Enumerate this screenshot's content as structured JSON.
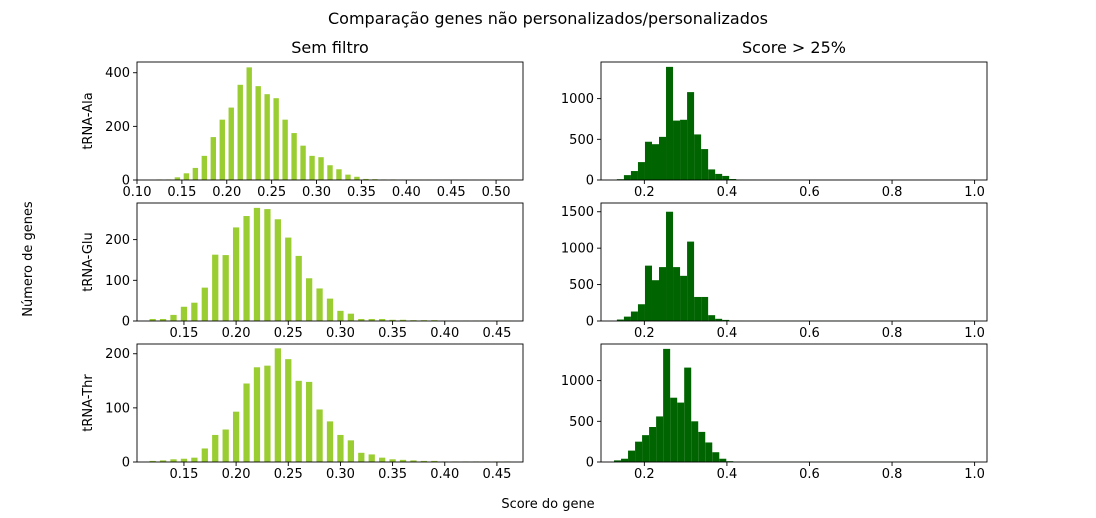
{
  "figure": {
    "title": "Comparação genes não personalizados/personalizados",
    "ylabel": "Número de genes",
    "xlabel": "Score do gene",
    "columns": [
      "Sem filtro",
      "Score > 25%"
    ],
    "rows": [
      "tRNA-Ala",
      "tRNA-Glu",
      "tRNA-Thr"
    ]
  },
  "colors": {
    "left": "#9acd32",
    "right": "#006400"
  },
  "chart_data": [
    {
      "type": "bar",
      "title": "Sem filtro",
      "ylabel": "tRNA-Ala",
      "bar_width": 0.006,
      "color": "#9acd32",
      "xlim": [
        0.1,
        0.53
      ],
      "ylim": [
        0,
        440
      ],
      "xticks": [
        0.1,
        0.15,
        0.2,
        0.25,
        0.3,
        0.35,
        0.4,
        0.45,
        0.5
      ],
      "xtick_labels": [
        "0.10",
        "0.15",
        "0.20",
        "0.25",
        "0.30",
        "0.35",
        "0.40",
        "0.45",
        "0.50"
      ],
      "yticks": [
        0,
        200,
        400
      ],
      "ytick_labels": [
        "0",
        "200",
        "400"
      ],
      "x": [
        0.125,
        0.135,
        0.145,
        0.155,
        0.165,
        0.175,
        0.185,
        0.195,
        0.205,
        0.215,
        0.225,
        0.235,
        0.245,
        0.255,
        0.265,
        0.275,
        0.285,
        0.295,
        0.305,
        0.315,
        0.325,
        0.335,
        0.345,
        0.355,
        0.365,
        0.375,
        0.385,
        0.395,
        0.405,
        0.415,
        0.425,
        0.435,
        0.445,
        0.455,
        0.465,
        0.475,
        0.485,
        0.495,
        0.505,
        0.515
      ],
      "values": [
        2,
        2,
        10,
        25,
        45,
        90,
        160,
        225,
        270,
        355,
        420,
        350,
        320,
        305,
        225,
        175,
        128,
        90,
        85,
        55,
        40,
        20,
        12,
        4,
        3,
        2,
        2,
        1,
        1,
        1,
        1,
        1,
        1,
        1,
        1,
        1,
        1,
        1,
        1,
        1
      ]
    },
    {
      "type": "histogram",
      "title": "Score > 25%",
      "color": "#006400",
      "xlim": [
        0.095,
        1.03
      ],
      "ylim": [
        0,
        1450
      ],
      "xticks": [
        0.2,
        0.4,
        0.6,
        0.8,
        1.0
      ],
      "xtick_labels": [
        "0.2",
        "0.4",
        "0.6",
        "0.8",
        "1.0"
      ],
      "yticks": [
        0,
        500,
        1000
      ],
      "ytick_labels": [
        "0",
        "500",
        "1000"
      ],
      "bin_width": 0.017,
      "x": [
        0.142,
        0.159,
        0.176,
        0.193,
        0.21,
        0.227,
        0.244,
        0.261,
        0.278,
        0.295,
        0.312,
        0.329,
        0.346,
        0.363,
        0.38,
        0.397,
        0.414,
        0.431,
        0.448,
        0.465,
        0.482,
        0.499,
        0.516,
        0.533,
        0.55,
        0.567,
        0.584,
        0.601,
        0.618,
        0.635,
        0.652,
        0.669,
        0.686,
        0.703,
        0.72,
        0.737,
        0.754,
        0.771,
        0.788,
        0.805,
        0.822,
        0.839,
        0.856,
        0.873,
        0.89,
        0.907,
        0.924,
        0.941,
        0.958,
        0.975,
        0.992
      ],
      "values": [
        10,
        60,
        110,
        220,
        470,
        440,
        530,
        1390,
        730,
        740,
        1080,
        560,
        380,
        130,
        75,
        50,
        12,
        3,
        2,
        2,
        2,
        2,
        2,
        2,
        2,
        2,
        2,
        2,
        2,
        2,
        2,
        2,
        2,
        2,
        2,
        2,
        2,
        2,
        2,
        2,
        2,
        2,
        2,
        2,
        2,
        2,
        2,
        2,
        2,
        2,
        2
      ]
    },
    {
      "type": "bar",
      "ylabel": "tRNA-Glu",
      "bar_width": 0.006,
      "color": "#9acd32",
      "xlim": [
        0.105,
        0.475
      ],
      "ylim": [
        0,
        290
      ],
      "xticks": [
        0.15,
        0.2,
        0.25,
        0.3,
        0.35,
        0.4,
        0.45
      ],
      "xtick_labels": [
        "0.15",
        "0.20",
        "0.25",
        "0.30",
        "0.35",
        "0.40",
        "0.45"
      ],
      "yticks": [
        0,
        100,
        200
      ],
      "ytick_labels": [
        "0",
        "100",
        "200"
      ],
      "x": [
        0.12,
        0.13,
        0.14,
        0.15,
        0.16,
        0.17,
        0.18,
        0.19,
        0.2,
        0.21,
        0.22,
        0.23,
        0.24,
        0.25,
        0.26,
        0.27,
        0.28,
        0.29,
        0.3,
        0.31,
        0.32,
        0.33,
        0.34,
        0.35,
        0.36,
        0.37,
        0.38,
        0.39,
        0.4,
        0.41,
        0.42,
        0.43,
        0.44,
        0.45,
        0.46
      ],
      "values": [
        5,
        5,
        15,
        35,
        45,
        82,
        163,
        162,
        230,
        258,
        278,
        275,
        250,
        205,
        160,
        105,
        80,
        55,
        25,
        18,
        5,
        5,
        5,
        3,
        3,
        2,
        2,
        2,
        1,
        1,
        1,
        1,
        1,
        1,
        1
      ]
    },
    {
      "type": "histogram",
      "color": "#006400",
      "xlim": [
        0.095,
        1.03
      ],
      "ylim": [
        0,
        1620
      ],
      "xticks": [
        0.2,
        0.4,
        0.6,
        0.8,
        1.0
      ],
      "xtick_labels": [
        "0.2",
        "0.4",
        "0.6",
        "0.8",
        "1.0"
      ],
      "yticks": [
        0,
        500,
        1000,
        1500
      ],
      "ytick_labels": [
        "0",
        "500",
        "1000",
        "1500"
      ],
      "bin_width": 0.017,
      "x": [
        0.142,
        0.159,
        0.176,
        0.193,
        0.21,
        0.227,
        0.244,
        0.261,
        0.278,
        0.295,
        0.312,
        0.329,
        0.346,
        0.363,
        0.38,
        0.397,
        0.414,
        0.431,
        0.448,
        0.465,
        0.482,
        0.499,
        0.516,
        0.533,
        0.55,
        0.567,
        0.584,
        0.601,
        0.618,
        0.635,
        0.652,
        0.669,
        0.686,
        0.703,
        0.72,
        0.737,
        0.754,
        0.771,
        0.788,
        0.805,
        0.822,
        0.839,
        0.856,
        0.873,
        0.89,
        0.907,
        0.924,
        0.941,
        0.958,
        0.975,
        0.992
      ],
      "values": [
        20,
        60,
        130,
        230,
        760,
        560,
        740,
        1500,
        740,
        620,
        1090,
        330,
        330,
        80,
        30,
        15,
        5,
        3,
        2,
        2,
        2,
        2,
        2,
        2,
        2,
        2,
        2,
        2,
        2,
        2,
        2,
        2,
        2,
        2,
        2,
        2,
        2,
        2,
        2,
        2,
        2,
        2,
        2,
        2,
        2,
        2,
        2,
        2,
        2,
        2,
        2
      ]
    },
    {
      "type": "bar",
      "ylabel": "tRNA-Thr",
      "bar_width": 0.006,
      "color": "#9acd32",
      "xlim": [
        0.105,
        0.475
      ],
      "ylim": [
        0,
        218
      ],
      "xticks": [
        0.15,
        0.2,
        0.25,
        0.3,
        0.35,
        0.4,
        0.45
      ],
      "xtick_labels": [
        "0.15",
        "0.20",
        "0.25",
        "0.30",
        "0.35",
        "0.40",
        "0.45"
      ],
      "yticks": [
        0,
        100,
        200
      ],
      "ytick_labels": [
        "0",
        "100",
        "200"
      ],
      "x": [
        0.12,
        0.13,
        0.14,
        0.15,
        0.16,
        0.17,
        0.18,
        0.19,
        0.2,
        0.21,
        0.22,
        0.23,
        0.24,
        0.25,
        0.26,
        0.27,
        0.28,
        0.29,
        0.3,
        0.31,
        0.32,
        0.33,
        0.34,
        0.35,
        0.36,
        0.37,
        0.38,
        0.39,
        0.4,
        0.41,
        0.42,
        0.43,
        0.44,
        0.45,
        0.46
      ],
      "values": [
        2,
        3,
        5,
        6,
        8,
        25,
        50,
        60,
        93,
        145,
        175,
        178,
        210,
        190,
        150,
        148,
        97,
        75,
        50,
        40,
        17,
        14,
        8,
        5,
        4,
        3,
        2,
        2,
        1,
        1,
        1,
        1,
        1,
        1,
        1
      ]
    },
    {
      "type": "histogram",
      "color": "#006400",
      "xlim": [
        0.095,
        1.03
      ],
      "ylim": [
        0,
        1450
      ],
      "xticks": [
        0.2,
        0.4,
        0.6,
        0.8,
        1.0
      ],
      "xtick_labels": [
        "0.2",
        "0.4",
        "0.6",
        "0.8",
        "1.0"
      ],
      "yticks": [
        0,
        500,
        1000
      ],
      "ytick_labels": [
        "0",
        "500",
        "1000"
      ],
      "bin_width": 0.017,
      "x": [
        0.135,
        0.152,
        0.169,
        0.186,
        0.203,
        0.22,
        0.237,
        0.254,
        0.271,
        0.288,
        0.305,
        0.322,
        0.339,
        0.356,
        0.373,
        0.39,
        0.407,
        0.424,
        0.441,
        0.458,
        0.475,
        0.492,
        0.509,
        0.526,
        0.543,
        0.56,
        0.577,
        0.594,
        0.611,
        0.628,
        0.645,
        0.662,
        0.679,
        0.696,
        0.713,
        0.73,
        0.747,
        0.764,
        0.781,
        0.798,
        0.815,
        0.832,
        0.849,
        0.866,
        0.883,
        0.9,
        0.917,
        0.934,
        0.951,
        0.968,
        0.985
      ],
      "values": [
        20,
        40,
        140,
        250,
        330,
        430,
        560,
        1390,
        790,
        730,
        1160,
        500,
        370,
        240,
        120,
        40,
        10,
        3,
        2,
        2,
        2,
        2,
        2,
        2,
        2,
        2,
        2,
        2,
        2,
        2,
        2,
        2,
        2,
        2,
        2,
        2,
        2,
        2,
        2,
        2,
        2,
        2,
        2,
        2,
        2,
        2,
        2,
        2,
        2,
        2,
        2
      ]
    }
  ]
}
